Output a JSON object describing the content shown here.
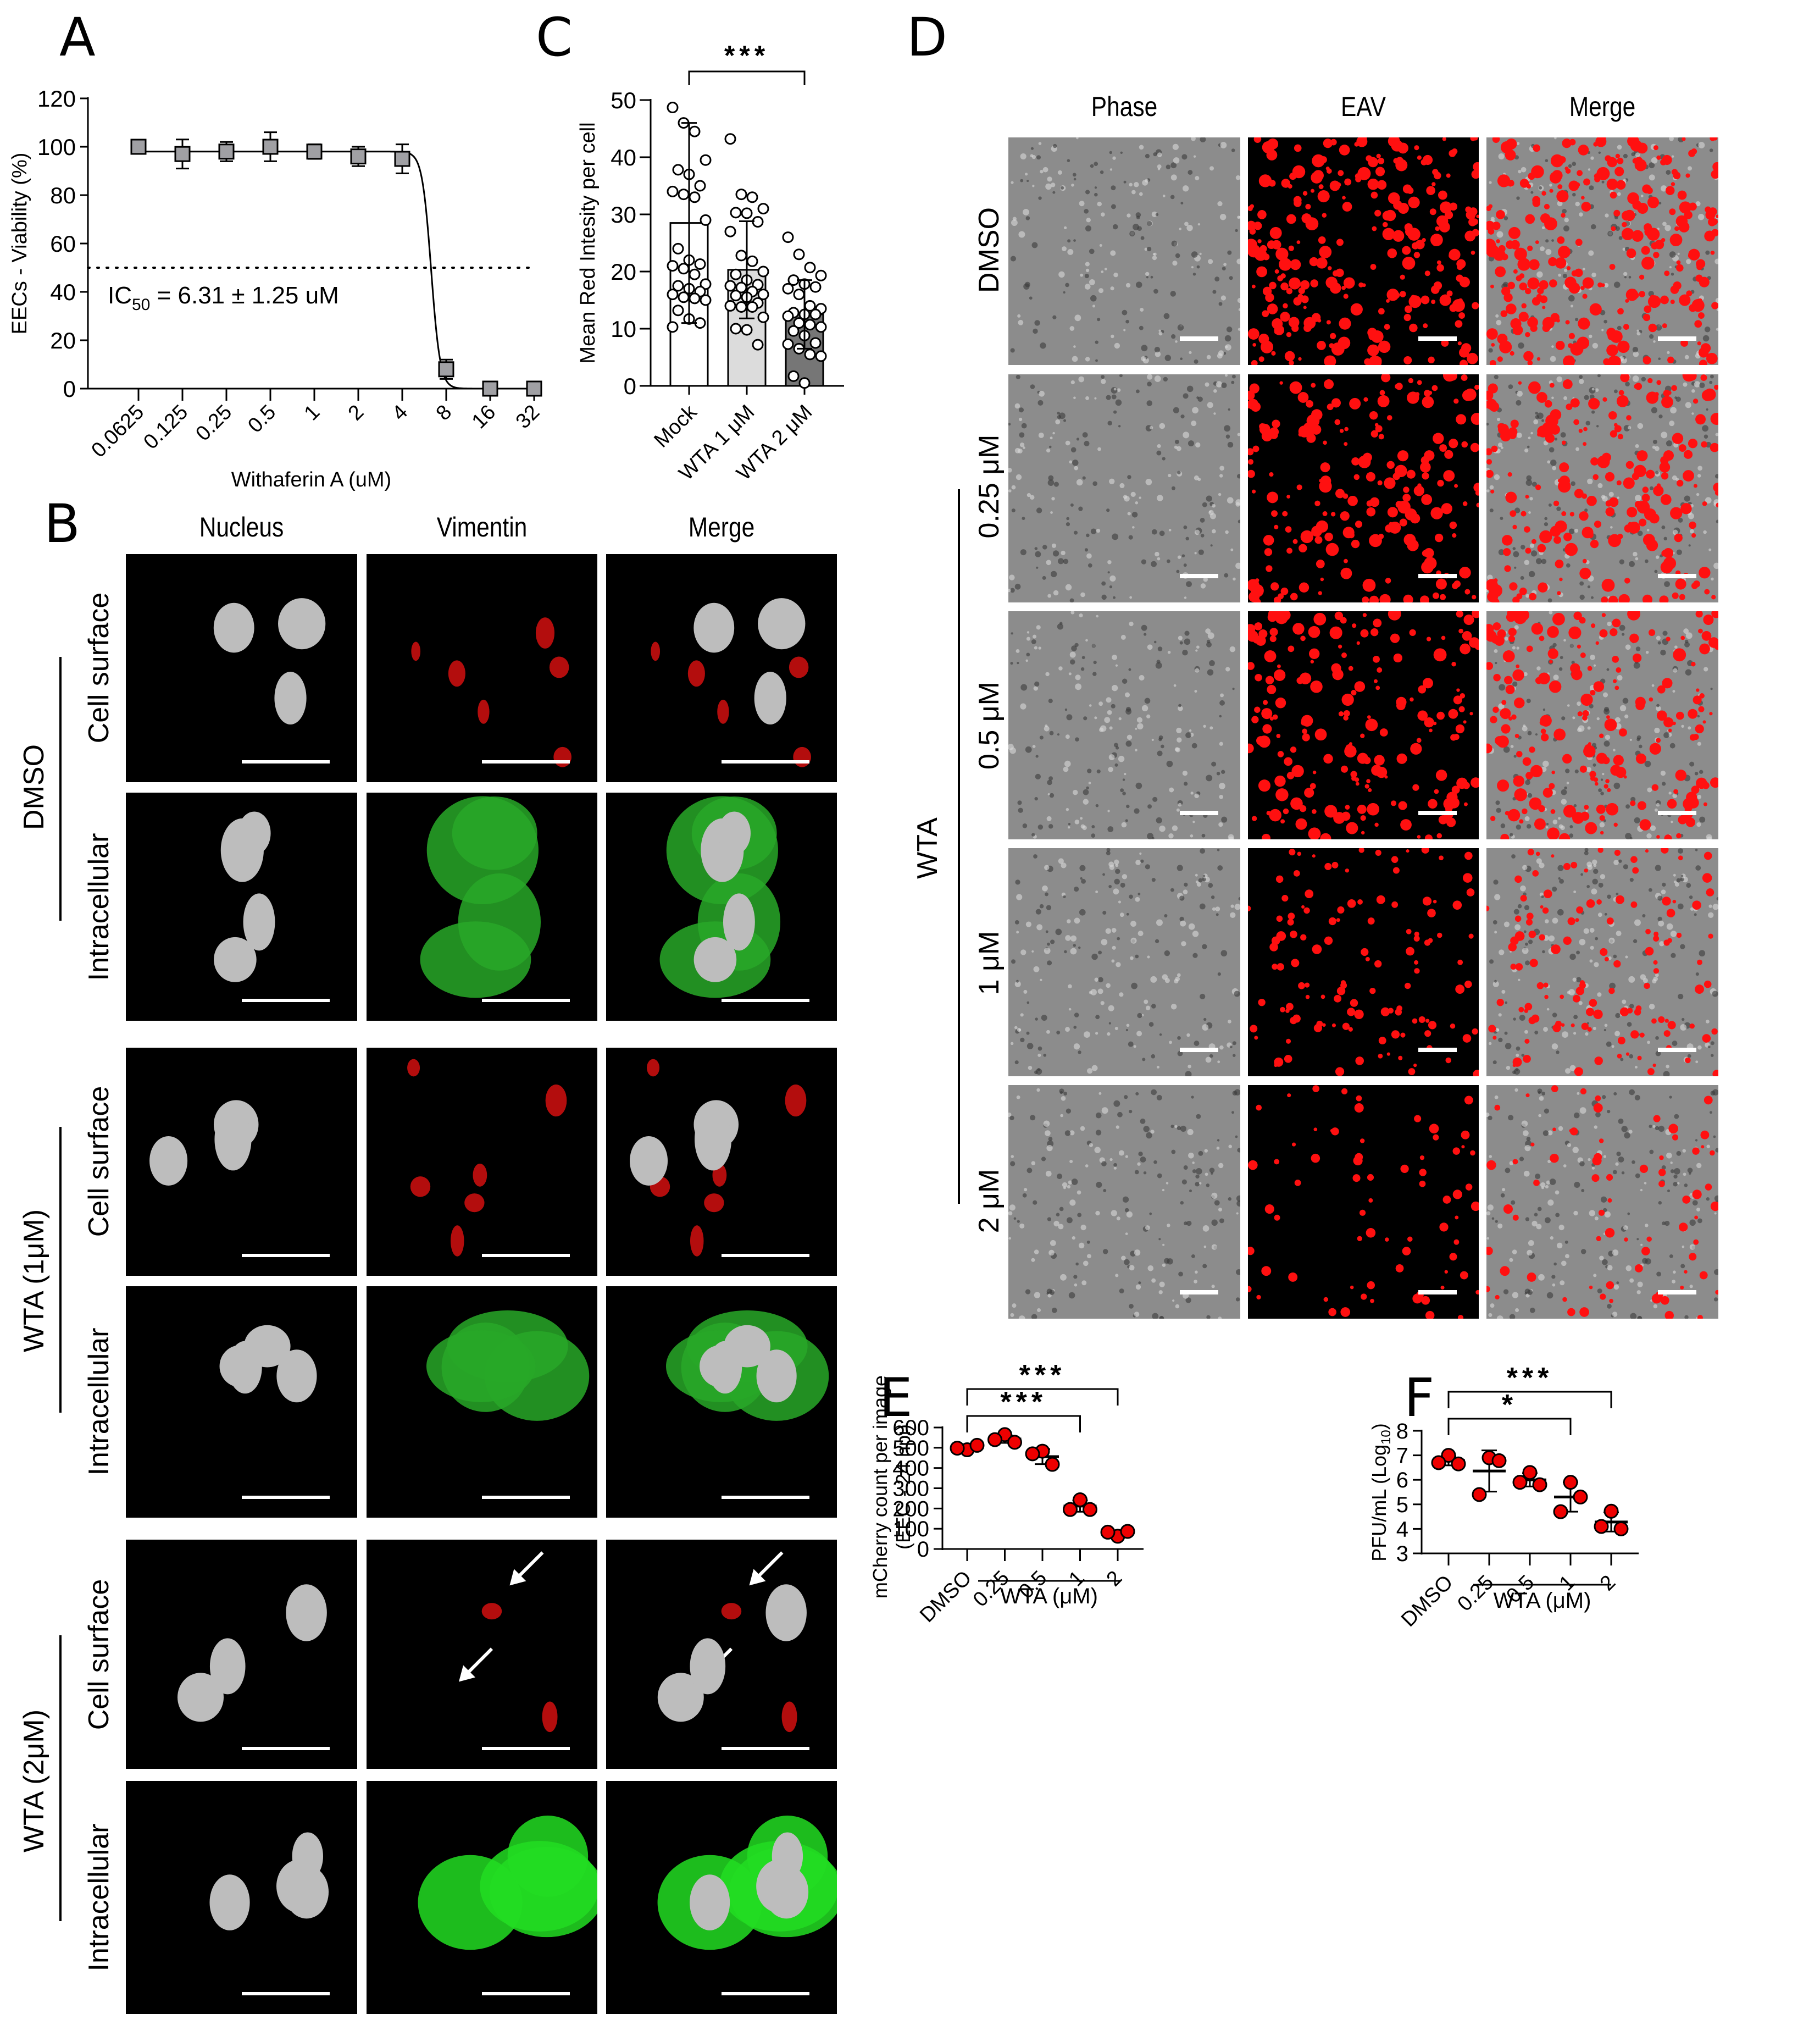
{
  "panels": {
    "A": {
      "letter": "A"
    },
    "B": {
      "letter": "B",
      "columns": [
        "Nucleus",
        "Vimentin",
        "Merge"
      ],
      "groups": [
        {
          "label": "DMSO",
          "rows": [
            "Cell surface",
            "Intracellular"
          ]
        },
        {
          "label": "WTA (1μM)",
          "rows": [
            "Cell surface",
            "Intracellular"
          ]
        },
        {
          "label": "WTA (2μM)",
          "rows": [
            "Cell surface",
            "Intracellular"
          ]
        }
      ]
    },
    "C": {
      "letter": "C"
    },
    "D": {
      "letter": "D",
      "columns": [
        "Phase",
        "EAV",
        "Merge"
      ],
      "rows": [
        "DMSO",
        "0.25 μM",
        "0.5 μM",
        "1 μM",
        "2 μM"
      ],
      "group_label": "WTA"
    },
    "E": {
      "letter": "E"
    },
    "F": {
      "letter": "F"
    }
  },
  "chart_data": [
    {
      "id": "A",
      "type": "line",
      "title": "",
      "xlabel": "Withaferin A (uM)",
      "ylabel": "EECs - Viability (%)",
      "categories": [
        "0.0625",
        "0.125",
        "0.25",
        "0.5",
        "1",
        "2",
        "4",
        "8",
        "16",
        "32"
      ],
      "series": [
        {
          "name": "Viability",
          "values": [
            100,
            97,
            98,
            100,
            98,
            96,
            95,
            8,
            0,
            0
          ],
          "errors": [
            1,
            6,
            4,
            6,
            3,
            4,
            6,
            4,
            0,
            0
          ]
        }
      ],
      "yticks": [
        0,
        20,
        40,
        60,
        80,
        100,
        120
      ],
      "ylim": [
        0,
        120
      ],
      "reference_line": {
        "y": 50,
        "style": "dotted"
      },
      "annotation": "IC50 = 6.31 ± 1.25 uM",
      "annotation_main": "IC",
      "annotation_sub": "50",
      "annotation_rest": " = 6.31 ± 1.25 uM",
      "marker": "square",
      "marker_color": "#a0a0a4"
    },
    {
      "id": "C",
      "type": "bar",
      "title": "",
      "xlabel": "",
      "ylabel": "Mean Red Intesity per cell",
      "categories": [
        "Mock",
        "WTA 1 μM",
        "WTA 2 μM"
      ],
      "values": [
        28.5,
        20.3,
        12.5
      ],
      "sd": [
        17.5,
        8.5,
        6.0
      ],
      "bar_colors": [
        "#ffffff",
        "#dcdcdc",
        "#767676"
      ],
      "points": [
        [
          48.7,
          46,
          44.5,
          39.5,
          37.8,
          37,
          35,
          34,
          33.5,
          33,
          29,
          24,
          22,
          21.3,
          21,
          20.5,
          19.5,
          17.8,
          17.5,
          17,
          16.5,
          16,
          15.5,
          15.3,
          15,
          13.2,
          11.7,
          11,
          10.3
        ],
        [
          43.2,
          33.5,
          33,
          31,
          30.3,
          30.2,
          28.7,
          27,
          22.8,
          21.8,
          20,
          19.5,
          18.5,
          17.7,
          17.5,
          17.2,
          16.5,
          16,
          15.8,
          15.5,
          14.5,
          14,
          13.8,
          13.8,
          12,
          10,
          9.8,
          7.2
        ],
        [
          26,
          23,
          20.7,
          19.3,
          18.5,
          17.8,
          17.3,
          17,
          16,
          14,
          13.5,
          12.8,
          12.5,
          12.5,
          12.2,
          11,
          10.7,
          10.3,
          9.6,
          8.8,
          7.5,
          7.3,
          6.5,
          5.5,
          5.2,
          1.7,
          0.5
        ]
      ],
      "yticks": [
        0,
        10,
        20,
        30,
        40,
        50
      ],
      "ylim": [
        0,
        50
      ],
      "significance": [
        {
          "from": 0,
          "to": 2,
          "label": "***"
        }
      ]
    },
    {
      "id": "E",
      "type": "scatter",
      "title": "",
      "xlabel": "WTA (μM)",
      "ylabel": "mCherry count per image",
      "ylabel2": "(EEC - 24 hpi)",
      "categories": [
        "DMSO",
        "0.25",
        "0.5",
        "1",
        "2"
      ],
      "points": [
        [
          490,
          512,
          498
        ],
        [
          565,
          527,
          540
        ],
        [
          483,
          418,
          470
        ],
        [
          243,
          195,
          195
        ],
        [
          63,
          87,
          83
        ]
      ],
      "means": [
        500,
        543,
        456,
        212,
        78
      ],
      "sd": [
        11,
        19,
        37,
        28,
        13
      ],
      "yticks": [
        0,
        100,
        200,
        300,
        400,
        500,
        600
      ],
      "ylim": [
        0,
        600
      ],
      "significance": [
        {
          "from": 0,
          "to": 3,
          "label": "***"
        },
        {
          "from": 0,
          "to": 4,
          "label": "***"
        }
      ],
      "marker_color": "#ee0000"
    },
    {
      "id": "F",
      "type": "scatter",
      "title": "",
      "xlabel": "WTA (μM)",
      "ylabel": "PFU/mL (Log",
      "ylabel_sub": "10",
      "ylabel_end": ")",
      "categories": [
        "DMSO",
        "0.25",
        "0.5",
        "1",
        "2"
      ],
      "points": [
        [
          7.0,
          6.65,
          6.7
        ],
        [
          6.9,
          6.78,
          5.4
        ],
        [
          6.3,
          5.8,
          5.9
        ],
        [
          5.9,
          5.3,
          4.7
        ],
        [
          4.72,
          4.0,
          4.1
        ]
      ],
      "means": [
        6.78,
        6.36,
        6.0,
        5.3,
        4.28
      ],
      "sd": [
        0.19,
        0.84,
        0.27,
        0.6,
        0.39
      ],
      "yticks": [
        3,
        4,
        5,
        6,
        7,
        8
      ],
      "ylim": [
        3,
        8
      ],
      "significance": [
        {
          "from": 0,
          "to": 3,
          "label": "*"
        },
        {
          "from": 0,
          "to": 4,
          "label": "***"
        }
      ],
      "marker_color": "#ee0000"
    }
  ]
}
